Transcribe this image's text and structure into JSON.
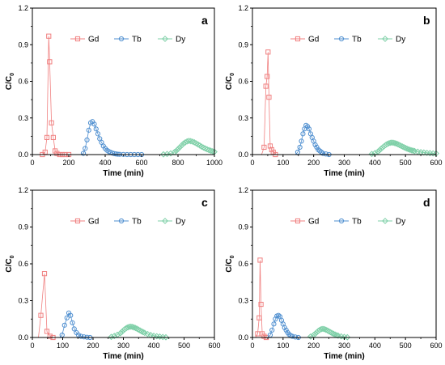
{
  "colors": {
    "Gd": "#f08080",
    "Tb": "#4f8fd0",
    "Dy": "#7fd0a8"
  },
  "chart_data": [
    {
      "type": "scatter",
      "panel_label": "a",
      "xlabel": "Time (min)",
      "ylabel": "C/C",
      "ylabel_sub": "0",
      "xlim": [
        0,
        1000
      ],
      "ylim": [
        0,
        1.2
      ],
      "xticks": [
        0,
        200,
        400,
        600,
        800,
        1000
      ],
      "yticks": [
        0.0,
        0.3,
        0.6,
        0.9,
        1.2
      ],
      "legend": [
        "Gd",
        "Tb",
        "Dy"
      ],
      "series": [
        {
          "name": "Gd",
          "marker": "square",
          "x": [
            0,
            55,
            70,
            80,
            90,
            95,
            105,
            115,
            125,
            135,
            150,
            165,
            180,
            200
          ],
          "y": [
            0,
            0.0,
            0.02,
            0.14,
            0.97,
            0.76,
            0.26,
            0.14,
            0.03,
            0.01,
            0.0,
            0.0,
            0.0,
            0.0
          ]
        },
        {
          "name": "Tb",
          "marker": "circle",
          "x": [
            270,
            280,
            290,
            300,
            310,
            320,
            330,
            340,
            350,
            360,
            370,
            380,
            390,
            400,
            410,
            420,
            430,
            440,
            450,
            460,
            470,
            480,
            500,
            520,
            540,
            560,
            580,
            600
          ],
          "y": [
            0.0,
            0.01,
            0.05,
            0.12,
            0.2,
            0.26,
            0.27,
            0.25,
            0.21,
            0.17,
            0.13,
            0.1,
            0.07,
            0.05,
            0.035,
            0.025,
            0.018,
            0.012,
            0.008,
            0.005,
            0.003,
            0.002,
            0.001,
            0.0,
            0.0,
            0.0,
            0.0,
            0.0
          ]
        },
        {
          "name": "Dy",
          "marker": "diamond",
          "x": [
            700,
            720,
            740,
            760,
            780,
            790,
            800,
            810,
            820,
            830,
            840,
            850,
            860,
            870,
            880,
            890,
            900,
            910,
            920,
            930,
            940,
            950,
            960,
            970,
            980,
            990,
            1000
          ],
          "y": [
            0.0,
            0.002,
            0.005,
            0.01,
            0.02,
            0.03,
            0.045,
            0.06,
            0.075,
            0.09,
            0.1,
            0.108,
            0.112,
            0.11,
            0.106,
            0.1,
            0.092,
            0.083,
            0.074,
            0.065,
            0.057,
            0.05,
            0.043,
            0.037,
            0.032,
            0.027,
            0.023
          ]
        }
      ]
    },
    {
      "type": "scatter",
      "panel_label": "b",
      "xlabel": "Time (min)",
      "ylabel": "C/C",
      "ylabel_sub": "0",
      "xlim": [
        0,
        600
      ],
      "ylim": [
        0,
        1.2
      ],
      "xticks": [
        0,
        100,
        200,
        300,
        400,
        500,
        600
      ],
      "yticks": [
        0.0,
        0.3,
        0.6,
        0.9,
        1.2
      ],
      "legend": [
        "Gd",
        "Tb",
        "Dy"
      ],
      "series": [
        {
          "name": "Gd",
          "marker": "square",
          "x": [
            30,
            38,
            44,
            48,
            51,
            54,
            58,
            63,
            68,
            75
          ],
          "y": [
            0.0,
            0.06,
            0.56,
            0.64,
            0.84,
            0.47,
            0.07,
            0.04,
            0.02,
            0.0
          ]
        },
        {
          "name": "Tb",
          "marker": "circle",
          "x": [
            140,
            148,
            155,
            160,
            165,
            170,
            175,
            180,
            185,
            190,
            195,
            200,
            205,
            210,
            215,
            220,
            225,
            230,
            240,
            250
          ],
          "y": [
            0.0,
            0.02,
            0.06,
            0.11,
            0.17,
            0.21,
            0.24,
            0.23,
            0.21,
            0.17,
            0.14,
            0.11,
            0.08,
            0.06,
            0.04,
            0.03,
            0.02,
            0.01,
            0.005,
            0.0
          ]
        },
        {
          "name": "Dy",
          "marker": "diamond",
          "x": [
            380,
            390,
            400,
            410,
            415,
            420,
            425,
            430,
            435,
            440,
            445,
            450,
            455,
            460,
            465,
            470,
            475,
            480,
            485,
            490,
            495,
            500,
            505,
            510,
            515,
            520,
            525,
            530,
            540,
            550,
            560,
            570,
            580,
            590,
            600
          ],
          "y": [
            0.0,
            0.005,
            0.012,
            0.025,
            0.035,
            0.047,
            0.058,
            0.068,
            0.078,
            0.086,
            0.092,
            0.096,
            0.098,
            0.097,
            0.094,
            0.09,
            0.085,
            0.078,
            0.072,
            0.066,
            0.06,
            0.054,
            0.048,
            0.043,
            0.039,
            0.035,
            0.032,
            0.029,
            0.024,
            0.02,
            0.017,
            0.014,
            0.012,
            0.01,
            0.009
          ]
        }
      ]
    },
    {
      "type": "scatter",
      "panel_label": "c",
      "xlabel": "Time (min)",
      "ylabel": "C/C",
      "ylabel_sub": "0",
      "xlim": [
        0,
        600
      ],
      "ylim": [
        0,
        1.2
      ],
      "xticks": [
        0,
        100,
        200,
        300,
        400,
        500,
        600
      ],
      "yticks": [
        0.0,
        0.3,
        0.6,
        0.9,
        1.2
      ],
      "legend": [
        "Gd",
        "Tb",
        "Dy"
      ],
      "series": [
        {
          "name": "Gd",
          "marker": "square",
          "x": [
            20,
            28,
            40,
            48,
            58,
            68
          ],
          "y": [
            0.0,
            0.18,
            0.52,
            0.05,
            0.01,
            0.0
          ]
        },
        {
          "name": "Tb",
          "marker": "circle",
          "x": [
            90,
            98,
            106,
            114,
            120,
            126,
            132,
            138,
            145,
            152,
            160,
            170,
            180,
            190
          ],
          "y": [
            0.0,
            0.02,
            0.1,
            0.16,
            0.2,
            0.18,
            0.12,
            0.07,
            0.04,
            0.02,
            0.01,
            0.005,
            0.002,
            0.0
          ]
        },
        {
          "name": "Dy",
          "marker": "diamond",
          "x": [
            250,
            260,
            270,
            280,
            290,
            295,
            300,
            305,
            310,
            315,
            320,
            325,
            330,
            335,
            340,
            345,
            350,
            355,
            360,
            365,
            370,
            380,
            390,
            400,
            410,
            420,
            430,
            440
          ],
          "y": [
            0.0,
            0.005,
            0.012,
            0.022,
            0.035,
            0.045,
            0.058,
            0.068,
            0.077,
            0.083,
            0.087,
            0.088,
            0.086,
            0.082,
            0.077,
            0.071,
            0.064,
            0.057,
            0.05,
            0.044,
            0.038,
            0.028,
            0.02,
            0.014,
            0.01,
            0.007,
            0.004,
            0.002
          ]
        }
      ]
    },
    {
      "type": "scatter",
      "panel_label": "d",
      "xlabel": "Time (min)",
      "ylabel": "C/C",
      "ylabel_sub": "0",
      "xlim": [
        0,
        600
      ],
      "ylim": [
        0,
        1.2
      ],
      "xticks": [
        0,
        100,
        200,
        300,
        400,
        500,
        600
      ],
      "yticks": [
        0.0,
        0.3,
        0.6,
        0.9,
        1.2
      ],
      "legend": [
        "Gd",
        "Tb",
        "Dy"
      ],
      "series": [
        {
          "name": "Gd",
          "marker": "square",
          "x": [
            10,
            17,
            22,
            25,
            28,
            32,
            38,
            45
          ],
          "y": [
            0.0,
            0.03,
            0.16,
            0.63,
            0.27,
            0.03,
            0.01,
            0.0
          ]
        },
        {
          "name": "Tb",
          "marker": "circle",
          "x": [
            50,
            58,
            64,
            70,
            75,
            80,
            85,
            90,
            95,
            100,
            105,
            110,
            115,
            120,
            125,
            130,
            140,
            150
          ],
          "y": [
            0.0,
            0.02,
            0.06,
            0.11,
            0.15,
            0.175,
            0.18,
            0.17,
            0.14,
            0.11,
            0.08,
            0.06,
            0.04,
            0.025,
            0.015,
            0.01,
            0.004,
            0.0
          ]
        },
        {
          "name": "Dy",
          "marker": "diamond",
          "x": [
            180,
            190,
            200,
            205,
            210,
            215,
            220,
            225,
            230,
            235,
            240,
            245,
            250,
            255,
            260,
            265,
            270,
            275,
            280,
            290,
            300,
            310
          ],
          "y": [
            0.0,
            0.008,
            0.02,
            0.03,
            0.042,
            0.053,
            0.062,
            0.068,
            0.07,
            0.068,
            0.063,
            0.057,
            0.05,
            0.043,
            0.036,
            0.03,
            0.024,
            0.019,
            0.015,
            0.009,
            0.005,
            0.002
          ]
        }
      ]
    }
  ]
}
